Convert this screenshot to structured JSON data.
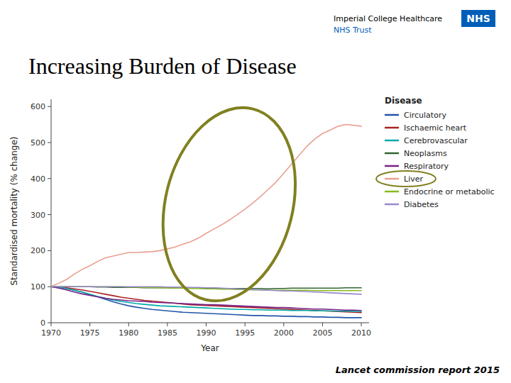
{
  "chart_data": {
    "type": "line",
    "title": "Increasing Burden of Disease",
    "subtitle": "Lancet commission report 2015",
    "xlabel": "Year",
    "ylabel": "Standardised mortality (% change)",
    "legend_title": "Disease",
    "annotations": [
      "Imperial College Healthcare",
      "NHS",
      "NHS Trust"
    ],
    "x": [
      1970,
      1971,
      1972,
      1973,
      1974,
      1975,
      1976,
      1977,
      1978,
      1979,
      1980,
      1981,
      1982,
      1983,
      1984,
      1985,
      1986,
      1987,
      1988,
      1989,
      1990,
      1991,
      1992,
      1993,
      1994,
      1995,
      1996,
      1997,
      1998,
      1999,
      2000,
      2001,
      2002,
      2003,
      2004,
      2005,
      2006,
      2007,
      2008,
      2009,
      2010
    ],
    "series": [
      {
        "name": "Circulatory",
        "color": "#2255aa",
        "values": [
          100,
          98,
          95,
          90,
          85,
          78,
          72,
          65,
          58,
          52,
          47,
          43,
          40,
          37,
          35,
          33,
          31,
          29,
          28,
          27,
          26,
          25,
          24,
          23,
          22,
          21,
          20,
          20,
          19,
          19,
          18,
          18,
          17,
          17,
          16,
          16,
          15,
          15,
          14,
          14,
          14
        ]
      },
      {
        "name": "Ischaemic heart",
        "color": "#aa2222",
        "values": [
          100,
          99,
          97,
          94,
          91,
          87,
          83,
          79,
          75,
          71,
          68,
          65,
          62,
          60,
          58,
          56,
          54,
          52,
          50,
          49,
          48,
          47,
          46,
          45,
          44,
          43,
          42,
          41,
          40,
          39,
          38,
          37,
          36,
          35,
          34,
          33,
          32,
          31,
          30,
          29,
          28
        ]
      },
      {
        "name": "Cerebrovascular",
        "color": "#00aaaa",
        "values": [
          100,
          98,
          95,
          90,
          85,
          79,
          73,
          68,
          63,
          59,
          56,
          53,
          51,
          49,
          47,
          46,
          45,
          44,
          43,
          42,
          41,
          40,
          39,
          38,
          37,
          37,
          36,
          36,
          35,
          35,
          35,
          34,
          34,
          34,
          33,
          33,
          33,
          32,
          32,
          32,
          31
        ]
      },
      {
        "name": "Neoplasms",
        "color": "#336633",
        "values": [
          100,
          100,
          100,
          100,
          100,
          100,
          99,
          99,
          98,
          98,
          98,
          98,
          97,
          97,
          97,
          97,
          96,
          96,
          96,
          96,
          96,
          96,
          95,
          95,
          95,
          95,
          95,
          95,
          94,
          95,
          95,
          96,
          96,
          96,
          96,
          96,
          96,
          96,
          97,
          97,
          97
        ]
      },
      {
        "name": "Respiratory",
        "color": "#772288",
        "values": [
          100,
          96,
          91,
          85,
          80,
          76,
          72,
          68,
          65,
          63,
          61,
          60,
          59,
          57,
          56,
          55,
          54,
          53,
          52,
          51,
          50,
          50,
          49,
          48,
          47,
          46,
          45,
          44,
          43,
          42,
          42,
          41,
          40,
          39,
          38,
          38,
          37,
          36,
          35,
          35,
          34
        ]
      },
      {
        "name": "Liver",
        "color": "#e8a090",
        "values": [
          100,
          110,
          120,
          135,
          148,
          158,
          170,
          180,
          185,
          190,
          195,
          195,
          196,
          197,
          200,
          205,
          210,
          218,
          225,
          235,
          248,
          260,
          272,
          285,
          300,
          315,
          332,
          350,
          370,
          390,
          415,
          440,
          465,
          490,
          510,
          525,
          535,
          545,
          550,
          548,
          545
        ]
      },
      {
        "name": "Endocrine or metabolic",
        "color": "#88bb22",
        "values": [
          100,
          100,
          100,
          100,
          100,
          100,
          100,
          100,
          100,
          100,
          99,
          99,
          98,
          98,
          97,
          97,
          96,
          96,
          95,
          95,
          94,
          94,
          93,
          93,
          92,
          92,
          91,
          91,
          90,
          90,
          90,
          90,
          90,
          90,
          89,
          89,
          89,
          89,
          89,
          89,
          89
        ]
      },
      {
        "name": "Diabetes",
        "color": "#9988cc",
        "values": [
          100,
          100,
          100,
          100,
          100,
          100,
          100,
          100,
          100,
          100,
          100,
          100,
          100,
          100,
          100,
          99,
          99,
          99,
          98,
          98,
          97,
          97,
          96,
          95,
          94,
          93,
          92,
          91,
          90,
          89,
          88,
          88,
          87,
          86,
          85,
          84,
          83,
          82,
          81,
          80,
          79
        ]
      }
    ],
    "xlim": [
      1970,
      2011
    ],
    "ylim": [
      0,
      620
    ],
    "xticks": [
      1970,
      1975,
      1980,
      1985,
      1990,
      1995,
      2000,
      2005,
      2010
    ],
    "yticks": [
      0,
      100,
      200,
      300,
      400,
      500,
      600
    ],
    "grid": false,
    "legend": "upper right"
  }
}
